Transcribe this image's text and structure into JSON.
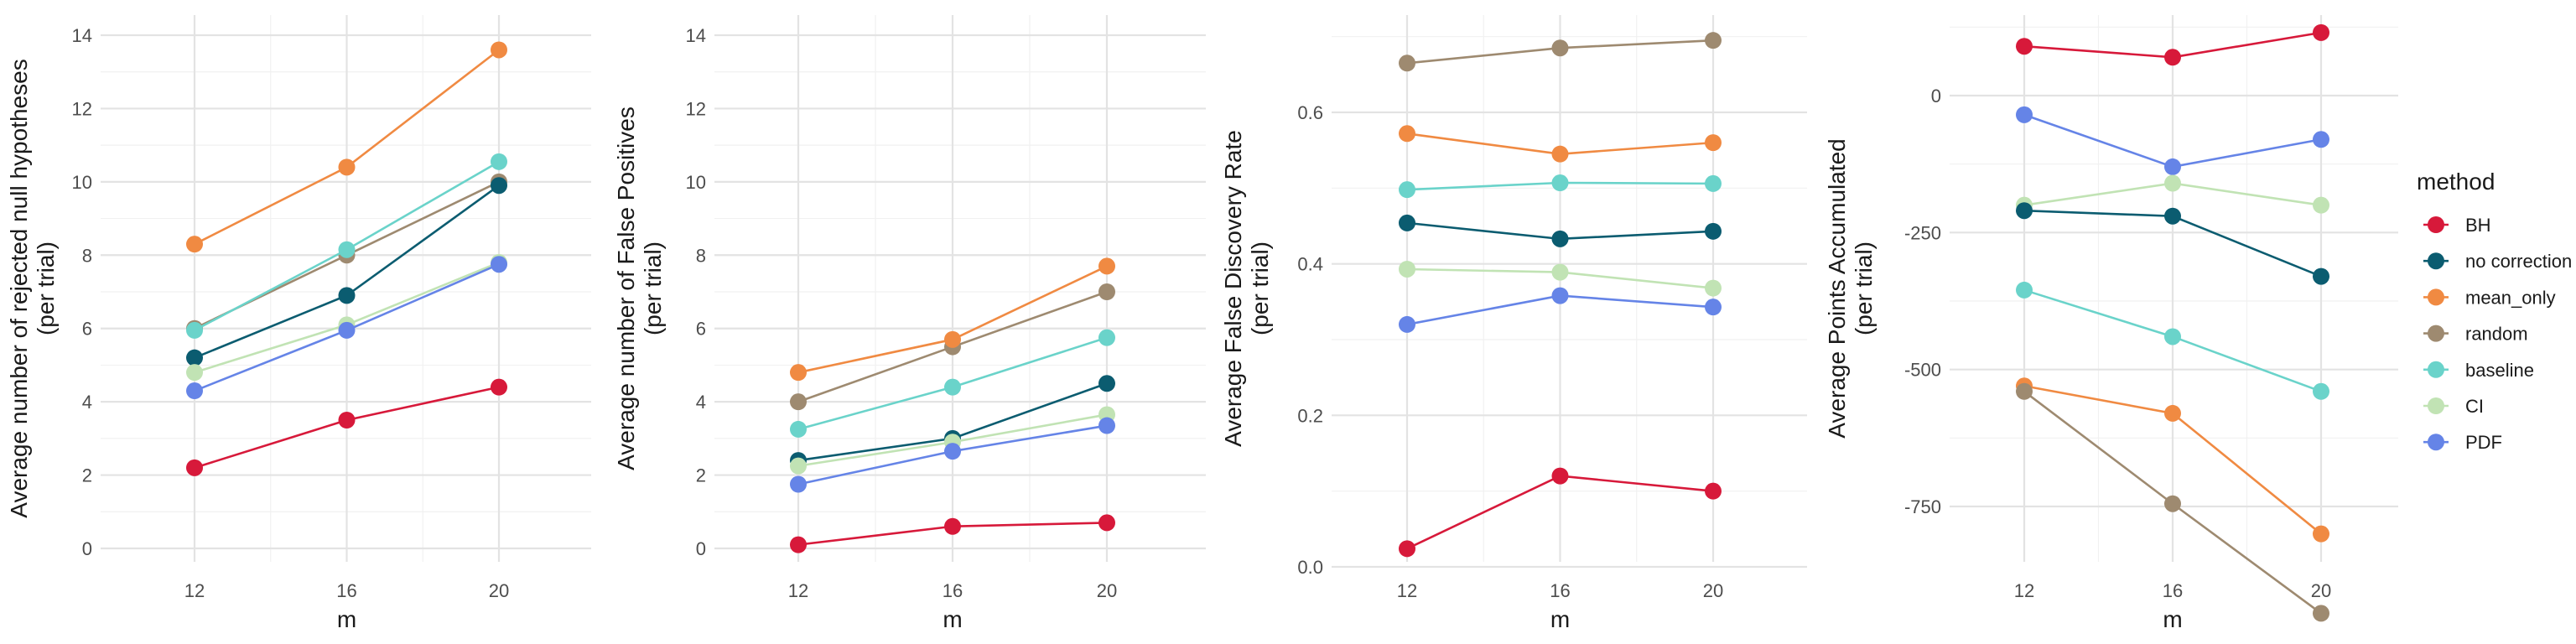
{
  "chart_data": [
    {
      "type": "line",
      "title": "",
      "xlabel": "m",
      "ylabel_lines": [
        "Average number of rejected null hypotheses",
        "(per trial)"
      ],
      "x": [
        12,
        16,
        20
      ],
      "xlim": [
        12,
        20
      ],
      "ylim": [
        0,
        14
      ],
      "yticks": [
        0,
        2,
        4,
        6,
        8,
        10,
        12,
        14
      ],
      "grid": true,
      "series": [
        {
          "name": "random",
          "values": [
            6.0,
            8.0,
            10.0
          ]
        },
        {
          "name": "no correction",
          "values": [
            5.2,
            6.9,
            9.9
          ]
        },
        {
          "name": "CI",
          "values": [
            4.8,
            6.1,
            7.8
          ]
        },
        {
          "name": "PDF",
          "values": [
            4.3,
            5.95,
            7.75
          ]
        },
        {
          "name": "baseline",
          "values": [
            5.95,
            8.15,
            10.55
          ]
        },
        {
          "name": "mean_only",
          "values": [
            8.3,
            10.4,
            13.6
          ]
        },
        {
          "name": "BH",
          "values": [
            2.2,
            3.5,
            4.4
          ]
        }
      ]
    },
    {
      "type": "line",
      "title": "",
      "xlabel": "m",
      "ylabel_lines": [
        "Average number of False Positives",
        "(per trial)"
      ],
      "x": [
        12,
        16,
        20
      ],
      "xlim": [
        12,
        20
      ],
      "ylim": [
        0,
        14
      ],
      "yticks": [
        0,
        2,
        4,
        6,
        8,
        10,
        12,
        14
      ],
      "grid": true,
      "series": [
        {
          "name": "random",
          "values": [
            4.0,
            5.5,
            7.0
          ]
        },
        {
          "name": "no correction",
          "values": [
            2.4,
            3.0,
            4.5
          ]
        },
        {
          "name": "CI",
          "values": [
            2.25,
            2.9,
            3.65
          ]
        },
        {
          "name": "PDF",
          "values": [
            1.75,
            2.65,
            3.35
          ]
        },
        {
          "name": "baseline",
          "values": [
            3.25,
            4.4,
            5.75
          ]
        },
        {
          "name": "mean_only",
          "values": [
            4.8,
            5.7,
            7.7
          ]
        },
        {
          "name": "BH",
          "values": [
            0.1,
            0.6,
            0.7
          ]
        }
      ]
    },
    {
      "type": "line",
      "title": "",
      "xlabel": "m",
      "ylabel_lines": [
        "Average False Discovery Rate",
        "(per trial)"
      ],
      "x": [
        12,
        16,
        20
      ],
      "xlim": [
        12,
        20
      ],
      "ylim": [
        0,
        0.7
      ],
      "yticks": [
        0.0,
        0.2,
        0.4,
        0.6
      ],
      "ytick_labels": [
        "0.0",
        "0.2",
        "0.4",
        "0.6"
      ],
      "grid": true,
      "series": [
        {
          "name": "random",
          "values": [
            0.665,
            0.685,
            0.695
          ]
        },
        {
          "name": "mean_only",
          "values": [
            0.572,
            0.545,
            0.56
          ]
        },
        {
          "name": "baseline",
          "values": [
            0.498,
            0.507,
            0.506
          ]
        },
        {
          "name": "no correction",
          "values": [
            0.454,
            0.433,
            0.443
          ]
        },
        {
          "name": "CI",
          "values": [
            0.393,
            0.389,
            0.368
          ]
        },
        {
          "name": "PDF",
          "values": [
            0.32,
            0.358,
            0.343
          ]
        },
        {
          "name": "BH",
          "values": [
            0.024,
            0.12,
            0.1
          ]
        }
      ]
    },
    {
      "type": "line",
      "title": "",
      "xlabel": "m",
      "ylabel_lines": [
        "Average Points Accumulated",
        "(per trial)"
      ],
      "x": [
        12,
        16,
        20
      ],
      "xlim": [
        12,
        20
      ],
      "ylim": [
        -920,
        120
      ],
      "yticks": [
        0,
        -250,
        -500,
        -750
      ],
      "ytick_labels": [
        "0",
        "-250",
        "-500",
        "-750"
      ],
      "grid": true,
      "series": [
        {
          "name": "BH",
          "values": [
            90,
            70,
            115
          ]
        },
        {
          "name": "PDF",
          "values": [
            -35,
            -130,
            -80
          ]
        },
        {
          "name": "CI",
          "values": [
            -200,
            -160,
            -200
          ]
        },
        {
          "name": "no correction",
          "values": [
            -210,
            -220,
            -330
          ]
        },
        {
          "name": "baseline",
          "values": [
            -355,
            -440,
            -540
          ]
        },
        {
          "name": "mean_only",
          "values": [
            -530,
            -580,
            -800
          ]
        },
        {
          "name": "random",
          "values": [
            -540,
            -745,
            -945
          ]
        }
      ]
    }
  ],
  "legend": {
    "title": "method",
    "position": "right",
    "items": [
      {
        "name": "BH"
      },
      {
        "name": "no correction"
      },
      {
        "name": "mean_only"
      },
      {
        "name": "random"
      },
      {
        "name": "baseline"
      },
      {
        "name": "CI"
      },
      {
        "name": "PDF"
      }
    ]
  },
  "colors": {
    "BH": "#d7193a",
    "no correction": "#0b5c70",
    "mean_only": "#f08a42",
    "random": "#9e8a70",
    "baseline": "#6ad3ca",
    "CI": "#c1e3b4",
    "PDF": "#6584e7"
  }
}
